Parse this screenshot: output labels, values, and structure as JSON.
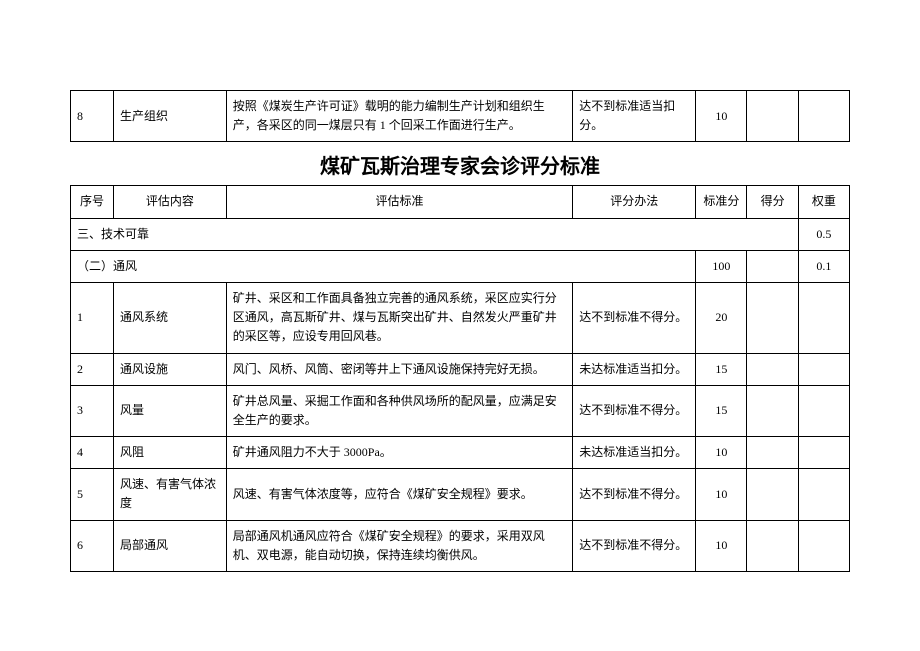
{
  "topRow": {
    "seq": "8",
    "item": "生产组织",
    "standard": "按照《煤炭生产许可证》载明的能力编制生产计划和组织生产，各采区的同一煤层只有 1 个回采工作面进行生产。",
    "method": "达不到标准适当扣分。",
    "score": "10",
    "got": "",
    "weight": ""
  },
  "title": "煤矿瓦斯治理专家会诊评分标准",
  "header": {
    "seq": "序号",
    "item": "评估内容",
    "standard": "评估标准",
    "method": "评分办法",
    "score": "标准分",
    "got": "得分",
    "weight": "权重"
  },
  "section3": {
    "label": "三、技术可靠",
    "weight": "0.5"
  },
  "section32": {
    "label": "（二）通风",
    "score": "100",
    "weight": "0.1"
  },
  "rows": [
    {
      "seq": "1",
      "item": "通风系统",
      "standard": "矿井、采区和工作面具备独立完善的通风系统，采区应实行分区通风，高瓦斯矿井、煤与瓦斯突出矿井、自然发火严重矿井的采区等，应设专用回风巷。",
      "method": "达不到标准不得分。",
      "score": "20",
      "got": "",
      "weight": ""
    },
    {
      "seq": "2",
      "item": "通风设施",
      "standard": "风门、风桥、风筒、密闭等井上下通风设施保持完好无损。",
      "method": "未达标准适当扣分。",
      "score": "15",
      "got": "",
      "weight": ""
    },
    {
      "seq": "3",
      "item": "风量",
      "standard": "矿井总风量、采掘工作面和各种供风场所的配风量，应满足安全生产的要求。",
      "method": "达不到标准不得分。",
      "score": "15",
      "got": "",
      "weight": ""
    },
    {
      "seq": "4",
      "item": "风阻",
      "standard": "矿井通风阻力不大于 3000Pa。",
      "method": "未达标准适当扣分。",
      "score": "10",
      "got": "",
      "weight": ""
    },
    {
      "seq": "5",
      "item": "风速、有害气体浓度",
      "standard": "风速、有害气体浓度等，应符合《煤矿安全规程》要求。",
      "method": "达不到标准不得分。",
      "score": "10",
      "got": "",
      "weight": ""
    },
    {
      "seq": "6",
      "item": "局部通风",
      "standard": "局部通风机通风应符合《煤矿安全规程》的要求，采用双风机、双电源，能自动切换，保持连续均衡供风。",
      "method": "达不到标准不得分。",
      "score": "10",
      "got": "",
      "weight": ""
    }
  ]
}
